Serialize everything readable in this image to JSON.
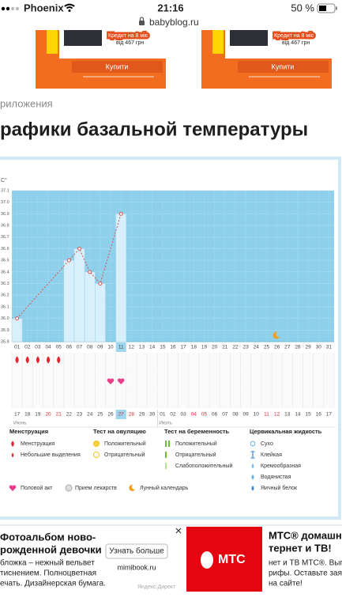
{
  "status": {
    "carrier": "Phoenix",
    "time": "21:16",
    "battery": "50 %"
  },
  "url": "babyblog.ru",
  "ads_top": [
    {
      "credit": "Кредит на 8 міс",
      "price": "від 467 грн",
      "button": "Купити"
    },
    {
      "credit": "Кредит на 8 міс",
      "price": "від 467 грн",
      "button": "Купити"
    }
  ],
  "breadcrumb": "риложения",
  "heading": "рафики базальной температуры",
  "chart_data": {
    "type": "line",
    "unit": "С°",
    "color": "#d9534f",
    "x": [
      1,
      6,
      7,
      8,
      9,
      11
    ],
    "values": [
      36.0,
      36.5,
      36.6,
      36.4,
      36.3,
      36.9
    ],
    "xlim": [
      0.5,
      31.5
    ],
    "xticks": [
      {
        "value": 1,
        "label": "01"
      },
      {
        "value": 2,
        "label": "02"
      },
      {
        "value": 3,
        "label": "03"
      },
      {
        "value": 4,
        "label": "04"
      },
      {
        "value": 5,
        "label": "05"
      },
      {
        "value": 6,
        "label": "06"
      },
      {
        "value": 7,
        "label": "07"
      },
      {
        "value": 8,
        "label": "08"
      },
      {
        "value": 9,
        "label": "09"
      },
      10,
      11,
      12,
      13,
      14,
      15,
      16,
      17,
      18,
      19,
      20,
      21,
      22,
      23,
      24,
      25,
      26,
      27,
      28,
      29,
      30,
      31
    ],
    "ylim": [
      35.8,
      37.1
    ],
    "yticks": [
      35.8,
      35.9,
      {
        "value": 36,
        "label": "36.0"
      },
      36.1,
      36.2,
      36.3,
      36.4,
      36.5,
      36.6,
      36.7,
      36.8,
      36.9,
      {
        "value": 37,
        "label": "37.0"
      },
      37.1
    ],
    "grid": true,
    "selected_day": 11,
    "menstruation_days": [
      1,
      2,
      3,
      4,
      5
    ],
    "intercourse_days": [
      10,
      11
    ],
    "moon_days": [
      26
    ],
    "dates": [
      "17",
      "18",
      "19",
      {
        "label": "20",
        "weekend": true
      },
      {
        "label": "21",
        "weekend": true
      },
      "22",
      "23",
      "24",
      "25",
      "26",
      {
        "label": "27",
        "weekend": true
      },
      {
        "label": "28",
        "weekend": true
      },
      "29",
      "30",
      "01",
      "02",
      "03",
      {
        "label": "04",
        "weekend": true
      },
      {
        "label": "05",
        "weekend": true
      },
      "06",
      "07",
      "08",
      "09",
      "10",
      {
        "label": "11",
        "weekend": true
      },
      {
        "label": "12",
        "weekend": true
      },
      "13",
      "14",
      "15",
      "16",
      "17"
    ],
    "months": [
      {
        "label": "Июнь",
        "day": 1
      },
      {
        "label": "Июль",
        "day": 15
      }
    ]
  },
  "legend": [
    {
      "title": "Менструация",
      "items": [
        "Менструация",
        "Небольшие выделения"
      ]
    },
    {
      "title": "Тест на овуляцию",
      "items": [
        "Положительный",
        "Отрицательный"
      ]
    },
    {
      "title": "Тест на беременность",
      "items": [
        "Положительный",
        "Отрицательный",
        "Слабоположительный"
      ]
    },
    {
      "title": "Цервикальная жидкость",
      "items": [
        "Сухо",
        "Клейкая",
        "Кремообразная",
        "Водянистая",
        "Яичный белок"
      ]
    }
  ],
  "legend_bottom": [
    "Половой акт",
    "Прием лекарств",
    "Лунный календарь"
  ],
  "ad_left": {
    "title_lines": [
      "Фотоальбом ново-",
      "рожденной девочки"
    ],
    "text_lines": [
      "бложка – нежный вельвет",
      "тиснением. Полноцветная",
      "ечать. Дизайнерская бумага."
    ],
    "button": "Узнать больше",
    "domain": "mimibook.ru",
    "source": "Яндекс.Директ"
  },
  "ad_right": {
    "logo": "МТС",
    "title_lines": [
      "МТС® домашни",
      "тернет и ТВ!"
    ],
    "text_lines": [
      "нет и ТВ МТС®. Выгод",
      "рифы. Оставьте заявк",
      "на сайте!"
    ]
  }
}
